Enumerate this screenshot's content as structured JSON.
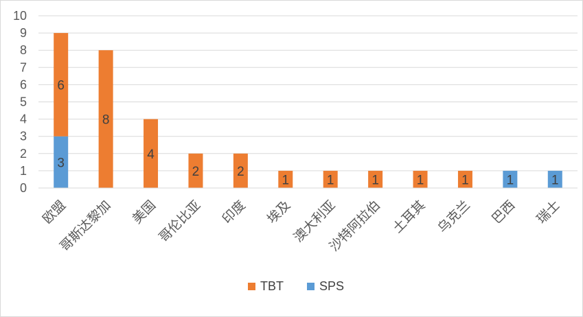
{
  "chart_data": {
    "type": "bar",
    "stacked": true,
    "categories": [
      "欧盟",
      "哥斯达黎加",
      "美国",
      "哥伦比亚",
      "印度",
      "埃及",
      "澳大利亚",
      "沙特阿拉伯",
      "土耳其",
      "乌克兰",
      "巴西",
      "瑞士"
    ],
    "series": [
      {
        "name": "SPS",
        "color": "#5b9bd5",
        "values": [
          3,
          0,
          0,
          0,
          0,
          0,
          0,
          0,
          0,
          0,
          1,
          1
        ]
      },
      {
        "name": "TBT",
        "color": "#ed7d31",
        "values": [
          6,
          8,
          4,
          2,
          2,
          1,
          1,
          1,
          1,
          1,
          0,
          0
        ]
      }
    ],
    "ylim": [
      0,
      10
    ],
    "yticks": [
      0,
      1,
      2,
      3,
      4,
      5,
      6,
      7,
      8,
      9,
      10
    ],
    "grid": true,
    "legend_position": "bottom",
    "legend_order": [
      "TBT",
      "SPS"
    ],
    "data_labels": true
  }
}
